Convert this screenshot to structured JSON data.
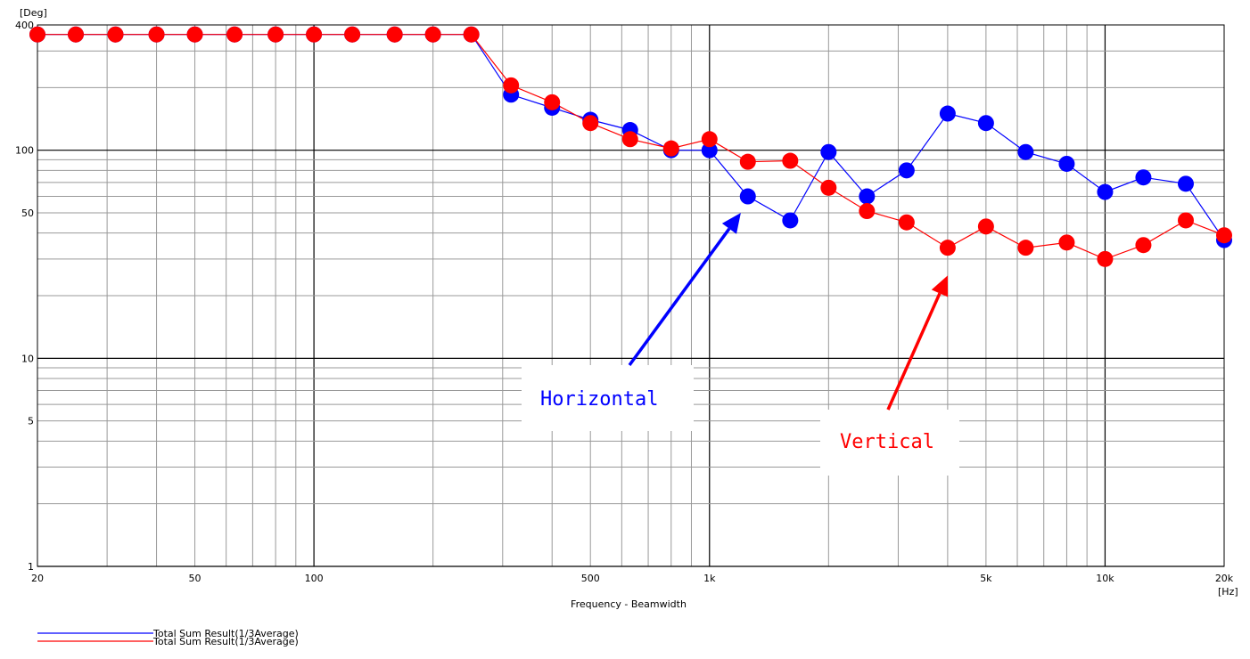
{
  "chart_data": {
    "type": "line",
    "title": "",
    "xlabel": "Frequency - Beamwidth",
    "ylabel": "",
    "x_unit": "[Hz]",
    "y_unit": "[Deg]",
    "xscale": "log",
    "yscale": "log",
    "xlim": [
      20,
      20000
    ],
    "ylim": [
      1,
      400
    ],
    "grid": true,
    "x_ticks": [
      {
        "v": 20,
        "label": "20"
      },
      {
        "v": 50,
        "label": "50"
      },
      {
        "v": 100,
        "label": "100"
      },
      {
        "v": 500,
        "label": "500"
      },
      {
        "v": 1000,
        "label": "1k"
      },
      {
        "v": 5000,
        "label": "5k"
      },
      {
        "v": 10000,
        "label": "10k"
      },
      {
        "v": 20000,
        "label": "20k"
      }
    ],
    "y_ticks": [
      {
        "v": 1,
        "label": "1"
      },
      {
        "v": 5,
        "label": "5"
      },
      {
        "v": 10,
        "label": "10"
      },
      {
        "v": 50,
        "label": "50"
      },
      {
        "v": 100,
        "label": "100"
      },
      {
        "v": 400,
        "label": "400"
      }
    ],
    "x": [
      20,
      25,
      31.5,
      40,
      50,
      63,
      80,
      100,
      125,
      160,
      200,
      250,
      315,
      400,
      500,
      630,
      800,
      1000,
      1250,
      1600,
      2000,
      2500,
      3150,
      4000,
      5000,
      6300,
      8000,
      10000,
      12500,
      16000,
      20000
    ],
    "series": [
      {
        "color": "#0000ff",
        "values": [
          360,
          360,
          360,
          360,
          360,
          360,
          360,
          360,
          360,
          360,
          360,
          360,
          185,
          160,
          140,
          125,
          100,
          100,
          60,
          46,
          98,
          60,
          80,
          150,
          135,
          98,
          86,
          63,
          74,
          69,
          37
        ]
      },
      {
        "color": "#ff0000",
        "values": [
          360,
          360,
          360,
          360,
          360,
          360,
          360,
          360,
          360,
          360,
          360,
          360,
          205,
          170,
          135,
          113,
          102,
          113,
          88,
          89,
          66,
          51,
          45,
          34,
          43,
          34,
          36,
          30,
          35,
          46,
          39
        ]
      }
    ],
    "annotations": [
      {
        "text": "Horizontal",
        "color": "#0000ff",
        "arrow_to": {
          "x": 1200,
          "y": 50
        }
      },
      {
        "text": "Vertical",
        "color": "#ff0000",
        "arrow_to": {
          "x": 4000,
          "y": 25
        }
      }
    ],
    "legend": [
      {
        "label": "Total Sum Result(1/3Average)",
        "color": "#0000ff"
      },
      {
        "label": "Total Sum Result(1/3Average)",
        "color": "#ff0000"
      }
    ],
    "legend_position": "bottom-left"
  }
}
